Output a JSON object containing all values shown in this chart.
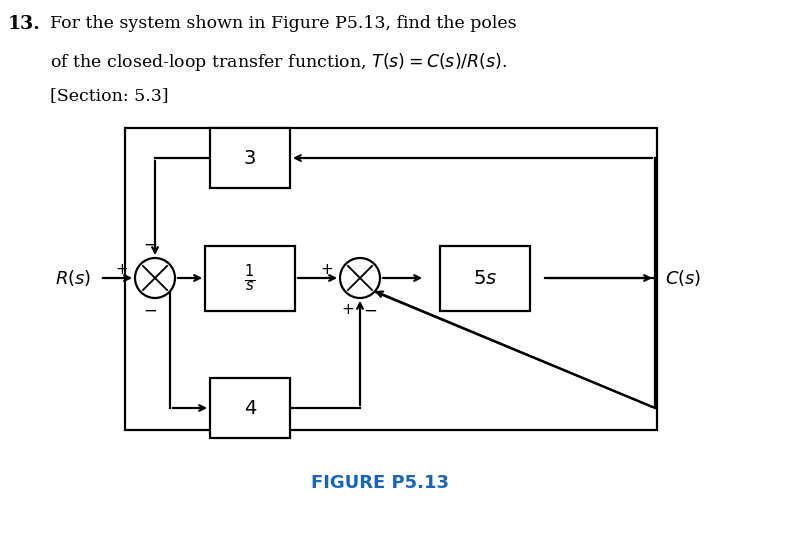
{
  "title_num": "13.",
  "header_line1": "For the system shown in Figure P5.13, find the poles",
  "header_line2": "of the closed-loop transfer function, $T(s) = C(s)/R(s)$.",
  "header_line3": "[Section: 5.3]",
  "figure_label": "FIGURE P5.13",
  "figure_label_color": "#1565c0",
  "bg_color": "#ffffff",
  "box_color": "#000000",
  "line_color": "#000000",
  "text_color": "#000000",
  "block_1s_label": "$\\frac{1}{s}$",
  "block_3_label": "3",
  "block_4_label": "4",
  "block_5s_label": "$5s$",
  "Rs_label": "$R(s)$",
  "Cs_label": "$C(s)$"
}
